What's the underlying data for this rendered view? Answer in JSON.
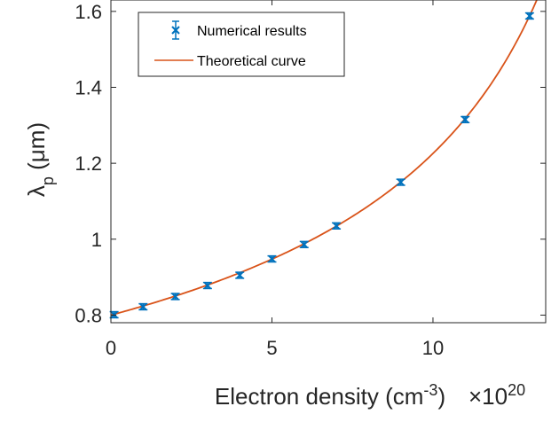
{
  "chart_data": {
    "type": "scatter",
    "x_axis": {
      "label_main": "Electron density (cm",
      "label_sup": "-3",
      "label_close": ")",
      "multiplier_base": "×10",
      "multiplier_exp": "20",
      "range": [
        0,
        13.5
      ],
      "ticks": [
        0,
        5,
        10
      ],
      "tick_labels": [
        "0",
        "5",
        "10"
      ]
    },
    "y_axis": {
      "label_main": "λ",
      "label_sub": "p",
      "label_unit": " (μm)",
      "range": [
        0.78,
        1.63
      ],
      "ticks": [
        0.8,
        1.0,
        1.2,
        1.4,
        1.6
      ],
      "tick_labels": [
        "0.8",
        "1",
        "1.2",
        "1.4",
        "1.6"
      ]
    },
    "grid": false,
    "legend_position": "top-left",
    "series": [
      {
        "name": "Numerical results",
        "style": "markers-errorbars",
        "color": "#0072BD",
        "points": [
          {
            "x": 0.1,
            "y": 0.801,
            "err": 0.008
          },
          {
            "x": 1,
            "y": 0.822,
            "err": 0.008
          },
          {
            "x": 2,
            "y": 0.849,
            "err": 0.008
          },
          {
            "x": 3,
            "y": 0.878,
            "err": 0.008
          },
          {
            "x": 4,
            "y": 0.905,
            "err": 0.008
          },
          {
            "x": 5,
            "y": 0.948,
            "err": 0.008
          },
          {
            "x": 6,
            "y": 0.986,
            "err": 0.008
          },
          {
            "x": 7,
            "y": 1.035,
            "err": 0.008
          },
          {
            "x": 9,
            "y": 1.15,
            "err": 0.008
          },
          {
            "x": 11,
            "y": 1.315,
            "err": 0.008
          },
          {
            "x": 13,
            "y": 1.588,
            "err": 0.008
          }
        ]
      },
      {
        "name": "Theoretical curve",
        "style": "line",
        "color": "#D95319",
        "model": {
          "lambda0": 0.8,
          "n_crit": 17.42
        }
      }
    ]
  }
}
